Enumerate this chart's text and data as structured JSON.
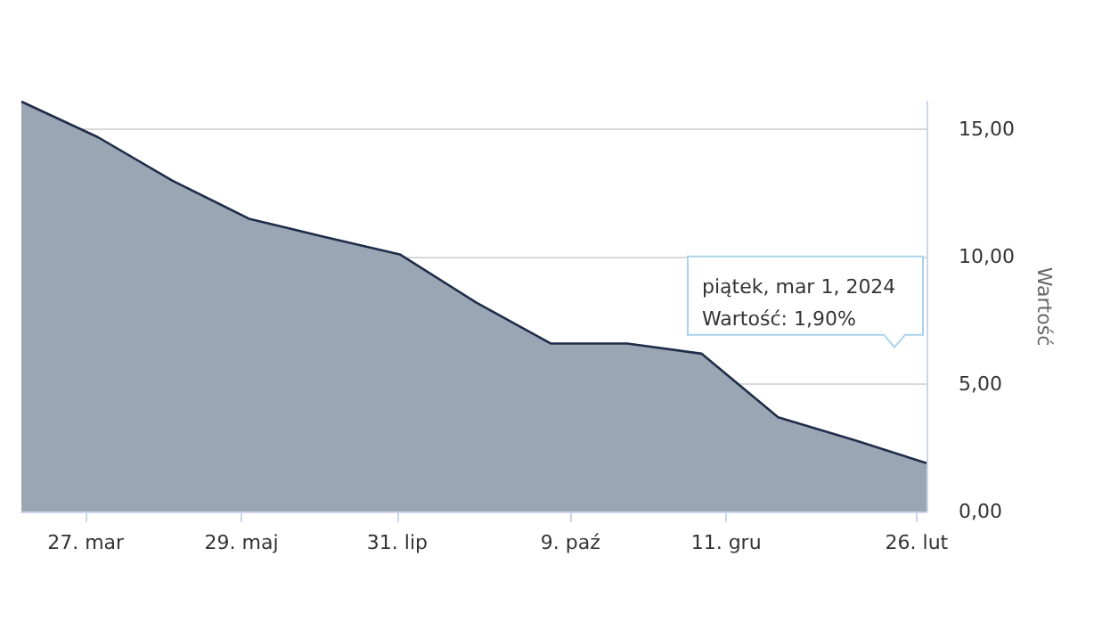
{
  "chart_data": {
    "type": "area",
    "ylabel": "Wartość",
    "x": [
      "2023-03-01",
      "2023-04-01",
      "2023-05-01",
      "2023-06-01",
      "2023-07-01",
      "2023-08-01",
      "2023-09-01",
      "2023-10-01",
      "2023-11-01",
      "2023-12-01",
      "2024-01-01",
      "2024-02-01",
      "2024-03-01"
    ],
    "series": [
      {
        "color": "#9ba6b4",
        "values": [
          16.1,
          14.7,
          13.0,
          11.5,
          10.8,
          10.1,
          8.2,
          6.6,
          6.6,
          6.2,
          3.7,
          2.8,
          1.9
        ]
      }
    ],
    "xlim": [
      "2023-03-01",
      "2024-03-01"
    ],
    "xticks": [
      {
        "value": "2023-03-27",
        "label": "27. mar"
      },
      {
        "value": "2023-05-29",
        "label": "29. maj"
      },
      {
        "value": "2023-07-31",
        "label": "31. lip"
      },
      {
        "value": "2023-10-09",
        "label": "9. paź"
      },
      {
        "value": "2023-12-11",
        "label": "11. gru"
      },
      {
        "value": "2024-02-26",
        "label": "26. lut"
      }
    ],
    "ylim": [
      0,
      16.1
    ],
    "yticks": [
      {
        "value": 0,
        "label": "0,00"
      },
      {
        "value": 5,
        "label": "5,00"
      },
      {
        "value": 10,
        "label": "10,00"
      },
      {
        "value": 15,
        "label": "15,00"
      }
    ],
    "grid": "y",
    "marker": "none",
    "line_style": "solid",
    "annotations": [
      "piątek, mar 1, 2024\nWartość: 1,90%"
    ]
  }
}
